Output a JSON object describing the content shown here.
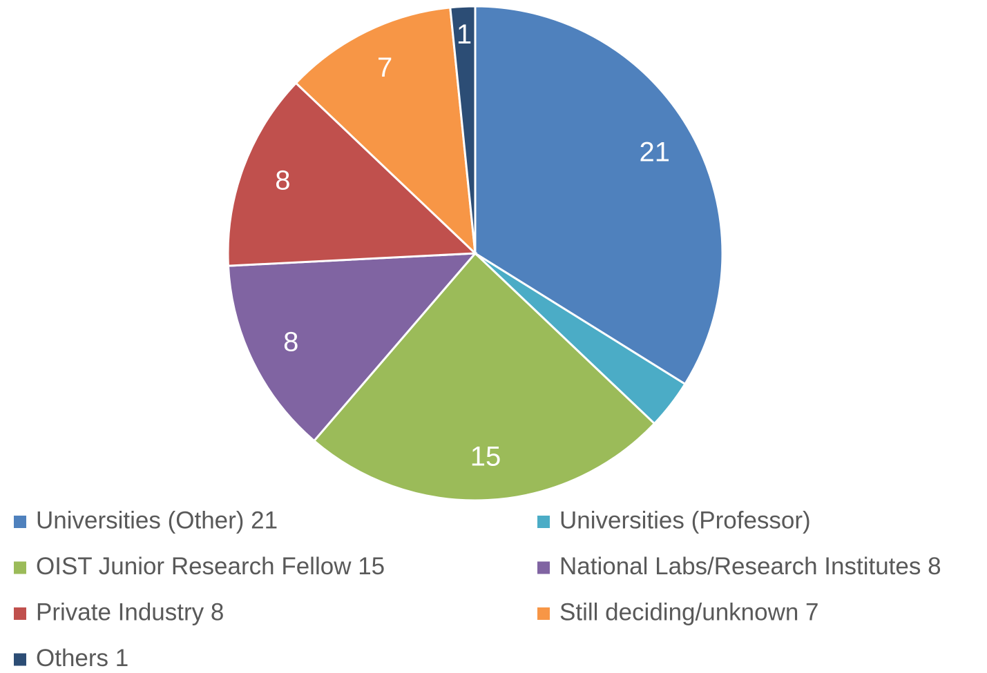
{
  "chart_data": {
    "type": "pie",
    "categories": [
      "Universities (Other) 21",
      "Universities (Professor)",
      "OIST Junior Research Fellow 15",
      "National Labs/Research Institutes 8",
      "Private Industry 8",
      "Still deciding/unknown 7",
      "Others 1"
    ],
    "values": [
      21,
      2,
      15,
      8,
      8,
      7,
      1
    ],
    "value_labels": [
      "21",
      null,
      "15",
      "8",
      "8",
      "7",
      "1"
    ],
    "colors": [
      "#4f81bd",
      "#4bacc6",
      "#9bbb59",
      "#8064a2",
      "#c0504d",
      "#f79646",
      "#2c4d75"
    ],
    "legend": "bottom"
  }
}
